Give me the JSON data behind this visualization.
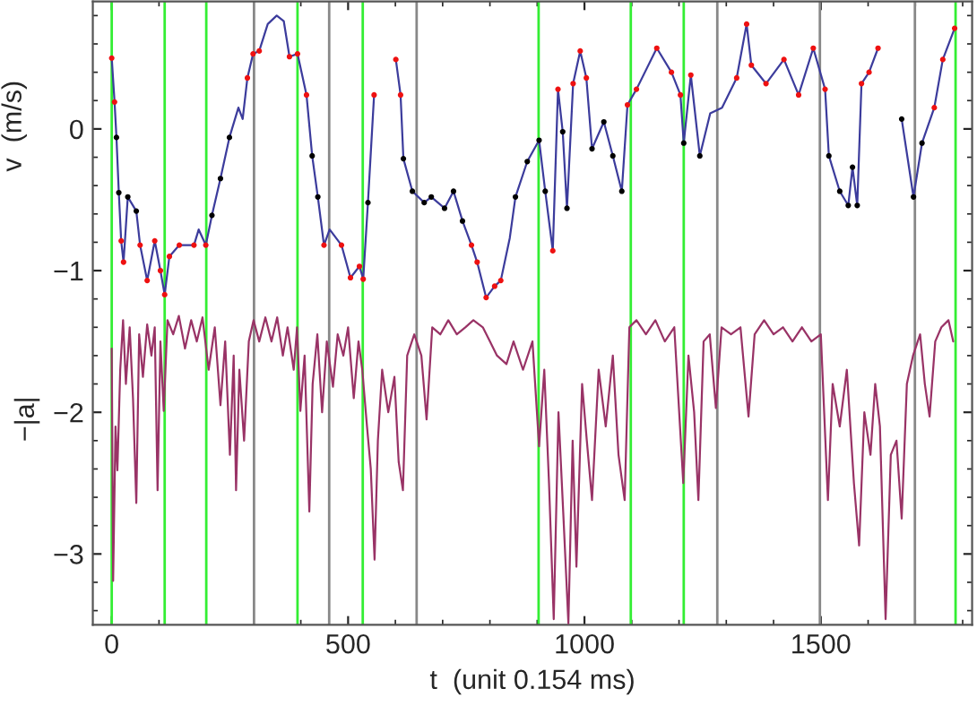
{
  "chart_data": {
    "type": "line",
    "xlabel": "t  (unit 0.154 ms)",
    "ylabel": "v  (m/s)",
    "annotations": [
      "−|a|"
    ],
    "xlim": [
      -40,
      1820
    ],
    "ylim": [
      -3.5,
      0.9
    ],
    "xticks": [
      0,
      500,
      1000,
      1500
    ],
    "yticks": [
      -3,
      -2,
      -1,
      0
    ],
    "grid": false,
    "legend": false,
    "series": [
      {
        "color": "#3c3c9c",
        "x": [
          0,
          6,
          10,
          15,
          20,
          25,
          34,
          52,
          60,
          75,
          91,
          103,
          112,
          122,
          143,
          174,
          184,
          199,
          212,
          230,
          249,
          268,
          277,
          287,
          299,
          312,
          330,
          349,
          364,
          376,
          393,
          412,
          424,
          436,
          449,
          461,
          486,
          505,
          524,
          532,
          542,
          555,
          567,
          592,
          601,
          611,
          617,
          636,
          661,
          676,
          704,
          723,
          742,
          761,
          773,
          792,
          810,
          823,
          842,
          854,
          879,
          904,
          917,
          933,
          944,
          954,
          963,
          976,
          991,
          1004,
          1016,
          1041,
          1060,
          1079,
          1091,
          1110,
          1153,
          1184,
          1203,
          1210,
          1225,
          1244,
          1266,
          1291,
          1322,
          1343,
          1353,
          1384,
          1422,
          1453,
          1484,
          1509,
          1517,
          1540,
          1558,
          1567,
          1577,
          1586,
          1602,
          1621,
          1633,
          1658,
          1671,
          1696,
          1714,
          1740,
          1758,
          1783
        ],
        "values": [
          0.5,
          0.19,
          -0.06,
          -0.45,
          -0.79,
          -0.94,
          -0.48,
          -0.58,
          -0.82,
          -1.07,
          -0.79,
          -1.0,
          -1.17,
          -0.9,
          -0.82,
          -0.82,
          -0.71,
          -0.82,
          -0.61,
          -0.35,
          -0.06,
          0.15,
          0.07,
          0.36,
          0.53,
          0.55,
          0.74,
          0.8,
          0.76,
          0.51,
          0.53,
          0.24,
          -0.19,
          -0.48,
          -0.82,
          -0.71,
          -0.82,
          -1.05,
          -0.97,
          -1.06,
          -0.52,
          0.24,
          null,
          null,
          0.49,
          0.24,
          -0.21,
          -0.44,
          -0.52,
          -0.48,
          -0.56,
          -0.44,
          -0.65,
          -0.82,
          -0.94,
          -1.19,
          -1.11,
          -1.07,
          -0.77,
          -0.48,
          -0.23,
          -0.08,
          -0.44,
          -0.86,
          0.28,
          -0.02,
          -0.56,
          0.32,
          0.55,
          0.36,
          -0.14,
          0.05,
          -0.19,
          -0.44,
          0.17,
          0.28,
          0.57,
          0.4,
          0.24,
          -0.1,
          0.38,
          -0.19,
          0.11,
          0.15,
          0.36,
          0.74,
          0.45,
          0.32,
          0.49,
          0.24,
          0.57,
          0.28,
          -0.19,
          -0.44,
          -0.54,
          -0.27,
          -0.54,
          0.32,
          0.4,
          0.57,
          null,
          null,
          0.07,
          -0.48,
          -0.1,
          0.15,
          0.49,
          0.71
        ]
      },
      {
        "type": "scatter",
        "color": "#ee1111",
        "marker": "circle",
        "x": [
          0,
          6,
          20,
          25,
          60,
          75,
          91,
          103,
          112,
          122,
          143,
          174,
          199,
          287,
          299,
          312,
          376,
          393,
          412,
          449,
          486,
          505,
          524,
          532,
          555,
          601,
          611,
          761,
          773,
          792,
          810,
          823,
          933,
          944,
          976,
          991,
          1004,
          1091,
          1110,
          1153,
          1184,
          1203,
          1225,
          1322,
          1343,
          1353,
          1384,
          1422,
          1453,
          1484,
          1509,
          1586,
          1602,
          1621,
          1740,
          1758,
          1783
        ],
        "values": [
          0.5,
          0.19,
          -0.79,
          -0.94,
          -0.82,
          -1.07,
          -0.79,
          -1.0,
          -1.17,
          -0.9,
          -0.82,
          -0.82,
          -0.82,
          0.36,
          0.53,
          0.55,
          0.51,
          0.53,
          0.24,
          -0.82,
          -0.82,
          -1.05,
          -0.97,
          -1.06,
          0.24,
          0.49,
          0.24,
          -0.82,
          -0.94,
          -1.19,
          -1.11,
          -1.07,
          -0.86,
          0.28,
          0.32,
          0.55,
          0.36,
          0.17,
          0.28,
          0.57,
          0.4,
          0.24,
          0.38,
          0.36,
          0.74,
          0.45,
          0.32,
          0.49,
          0.24,
          0.57,
          0.28,
          0.32,
          0.4,
          0.57,
          0.15,
          0.49,
          0.71
        ]
      },
      {
        "type": "scatter",
        "color": "#000000",
        "marker": "circle",
        "x": [
          10,
          15,
          34,
          52,
          212,
          230,
          249,
          424,
          436,
          542,
          617,
          636,
          661,
          676,
          704,
          723,
          742,
          854,
          879,
          904,
          917,
          954,
          963,
          1016,
          1041,
          1060,
          1079,
          1210,
          1244,
          1517,
          1540,
          1558,
          1567,
          1577,
          1671,
          1696,
          1714
        ],
        "values": [
          -0.06,
          -0.45,
          -0.48,
          -0.58,
          -0.61,
          -0.35,
          -0.06,
          -0.19,
          -0.48,
          -0.52,
          -0.21,
          -0.44,
          -0.52,
          -0.48,
          -0.56,
          -0.44,
          -0.65,
          -0.48,
          -0.23,
          -0.08,
          -0.44,
          -0.02,
          -0.56,
          -0.14,
          0.05,
          -0.19,
          -0.44,
          -0.1,
          -0.19,
          -0.19,
          -0.44,
          -0.54,
          -0.27,
          -0.54,
          0.07,
          -0.48,
          -0.1
        ]
      },
      {
        "color": "#993366",
        "x": [
          0,
          3,
          8,
          12,
          18,
          24,
          30,
          38,
          45,
          52,
          58,
          66,
          75,
          84,
          91,
          97,
          103,
          110,
          118,
          130,
          142,
          155,
          168,
          180,
          192,
          205,
          218,
          230,
          240,
          250,
          258,
          263,
          270,
          280,
          290,
          300,
          312,
          325,
          338,
          350,
          362,
          372,
          385,
          392,
          399,
          408,
          418,
          425,
          435,
          445,
          455,
          468,
          478,
          490,
          500,
          512,
          522,
          530,
          540,
          548,
          556,
          563,
          572,
          585,
          598,
          607,
          616,
          625,
          640,
          655,
          666,
          678,
          695,
          712,
          730,
          748,
          765,
          785,
          800,
          815,
          835,
          850,
          870,
          890,
          904,
          915,
          925,
          935,
          945,
          955,
          966,
          975,
          983,
          995,
          1005,
          1016,
          1030,
          1045,
          1060,
          1072,
          1085,
          1095,
          1110,
          1130,
          1150,
          1170,
          1190,
          1209,
          1220,
          1232,
          1241,
          1252,
          1265,
          1278,
          1290,
          1310,
          1330,
          1347,
          1360,
          1380,
          1400,
          1420,
          1440,
          1460,
          1480,
          1500,
          1515,
          1525,
          1540,
          1555,
          1570,
          1581,
          1592,
          1605,
          1615,
          1625,
          1637,
          1648,
          1660,
          1671,
          1682,
          1695,
          1710,
          1720,
          1730,
          1742,
          1755,
          1770,
          1780
        ],
        "values": [
          -1.55,
          -3.19,
          -2.1,
          -2.41,
          -1.7,
          -1.35,
          -1.8,
          -1.4,
          -1.9,
          -2.64,
          -1.45,
          -1.75,
          -1.38,
          -1.6,
          -1.4,
          -2.55,
          -1.5,
          -1.99,
          -1.35,
          -1.45,
          -1.32,
          -1.55,
          -1.35,
          -1.5,
          -1.33,
          -1.7,
          -1.4,
          -1.95,
          -1.5,
          -2.3,
          -1.6,
          -2.55,
          -1.7,
          -2.2,
          -1.5,
          -1.35,
          -1.5,
          -1.33,
          -1.5,
          -1.33,
          -1.6,
          -1.4,
          -1.7,
          -1.4,
          -1.99,
          -1.6,
          -2.7,
          -1.8,
          -1.45,
          -2.0,
          -1.5,
          -1.82,
          -1.45,
          -1.6,
          -1.4,
          -1.9,
          -1.5,
          -1.7,
          -2.1,
          -2.4,
          -3.04,
          -2.2,
          -1.7,
          -2.0,
          -1.75,
          -2.35,
          -2.55,
          -1.6,
          -1.45,
          -1.6,
          -2.05,
          -1.4,
          -1.45,
          -1.35,
          -1.45,
          -1.4,
          -1.35,
          -1.4,
          -1.5,
          -1.6,
          -1.66,
          -1.5,
          -1.7,
          -1.5,
          -2.24,
          -1.7,
          -2.5,
          -3.46,
          -2.0,
          -2.7,
          -3.49,
          -2.2,
          -3.09,
          -1.8,
          -2.2,
          -2.62,
          -1.7,
          -2.1,
          -1.6,
          -2.3,
          -2.62,
          -1.4,
          -1.35,
          -1.45,
          -1.35,
          -1.5,
          -1.4,
          -2.5,
          -1.6,
          -2.0,
          -2.62,
          -1.5,
          -1.45,
          -1.97,
          -1.4,
          -1.45,
          -1.4,
          -2.03,
          -1.45,
          -1.35,
          -1.45,
          -1.4,
          -1.5,
          -1.4,
          -1.5,
          -1.45,
          -2.62,
          -1.8,
          -2.1,
          -1.7,
          -2.5,
          -2.94,
          -2.0,
          -2.3,
          -1.8,
          -2.1,
          -3.46,
          -2.3,
          -2.2,
          -2.75,
          -1.8,
          -1.6,
          -1.45,
          -1.8,
          -2.03,
          -1.5,
          -1.4,
          -1.35,
          -1.5
        ]
      }
    ],
    "ref_lines": [
      {
        "axis": "x",
        "value": 0,
        "color": "#33ee33"
      },
      {
        "axis": "x",
        "value": 112,
        "color": "#33ee33"
      },
      {
        "axis": "x",
        "value": 200,
        "color": "#33ee33"
      },
      {
        "axis": "x",
        "value": 301,
        "color": "#888888"
      },
      {
        "axis": "x",
        "value": 393,
        "color": "#33ee33"
      },
      {
        "axis": "x",
        "value": 460,
        "color": "#888888"
      },
      {
        "axis": "x",
        "value": 531,
        "color": "#33ee33"
      },
      {
        "axis": "x",
        "value": 645,
        "color": "#888888"
      },
      {
        "axis": "x",
        "value": 903,
        "color": "#33ee33"
      },
      {
        "axis": "x",
        "value": 1098,
        "color": "#33ee33"
      },
      {
        "axis": "x",
        "value": 1210,
        "color": "#33ee33"
      },
      {
        "axis": "x",
        "value": 1281,
        "color": "#888888"
      },
      {
        "axis": "x",
        "value": 1498,
        "color": "#888888"
      },
      {
        "axis": "x",
        "value": 1699,
        "color": "#888888"
      },
      {
        "axis": "x",
        "value": 1785,
        "color": "#33ee33"
      }
    ]
  }
}
